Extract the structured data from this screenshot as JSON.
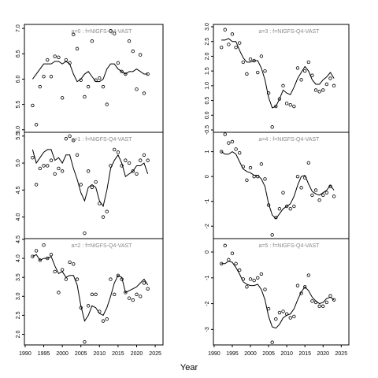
{
  "xlabel": "Year",
  "chart_data": [
    {
      "type": "scatter",
      "title": "a=0 : f=NIGFS-Q4-VAST",
      "x": [
        1992,
        1993,
        1994,
        1995,
        1996,
        1997,
        1998,
        1999,
        2000,
        2001,
        2002,
        2003,
        2004,
        2005,
        2006,
        2007,
        2008,
        2009,
        2010,
        2011,
        2012,
        2013,
        2014,
        2015,
        2016,
        2017,
        2018,
        2019,
        2020,
        2021,
        2022,
        2023
      ],
      "series": [
        {
          "style": "points",
          "color": "#000000",
          "values": [
            5.48,
            5.1,
            5.85,
            6.05,
            6.38,
            6.05,
            6.45,
            6.43,
            5.63,
            6.38,
            6.32,
            6.88,
            6.6,
            5.98,
            5.65,
            5.85,
            6.75,
            5.98,
            6.02,
            5.85,
            5.5,
            6.95,
            6.9,
            6.32,
            6.15,
            6.1,
            6.75,
            6.55,
            5.8,
            6.48,
            5.72,
            6.1
          ]
        },
        {
          "style": "line",
          "color": "#000000",
          "values": [
            6.0,
            6.1,
            6.2,
            6.3,
            6.3,
            6.3,
            6.35,
            6.35,
            6.3,
            6.35,
            6.3,
            6.1,
            5.95,
            6.0,
            6.1,
            6.15,
            6.05,
            5.95,
            5.95,
            6.0,
            6.2,
            6.3,
            6.3,
            6.2,
            6.15,
            6.1,
            6.15,
            6.15,
            6.2,
            6.15,
            6.1,
            6.1
          ]
        }
      ],
      "xlim": [
        1989.8,
        2027.1
      ],
      "ylim": [
        4.95,
        7.08
      ],
      "yticks": [
        {
          "value": 5,
          "label": "5.0"
        },
        5.5,
        {
          "value": 6,
          "label": "6.0"
        },
        6.5,
        {
          "value": 7,
          "label": "7.0"
        }
      ]
    },
    {
      "type": "scatter",
      "title": "a=1 : f=NIGFS-Q4-VAST",
      "x": [
        1992,
        1993,
        1994,
        1995,
        1996,
        1997,
        1998,
        1999,
        2000,
        2001,
        2002,
        2003,
        2004,
        2005,
        2006,
        2007,
        2008,
        2009,
        2010,
        2011,
        2012,
        2013,
        2014,
        2015,
        2016,
        2017,
        2018,
        2019,
        2020,
        2021,
        2022,
        2023
      ],
      "series": [
        {
          "style": "points",
          "color": "#000000",
          "values": [
            5.1,
            4.6,
            4.9,
            4.95,
            4.95,
            5.05,
            4.8,
            4.9,
            4.85,
            5.45,
            5.5,
            5.42,
            5.15,
            4.6,
            3.7,
            4.85,
            4.55,
            4.65,
            4.25,
            4.0,
            4.1,
            4.95,
            5.25,
            5.2,
            4.95,
            5.05,
            5.0,
            4.85,
            4.8,
            5.05,
            5.15,
            5.05
          ]
        },
        {
          "style": "line",
          "color": "#000000",
          "values": [
            5.25,
            5.0,
            5.1,
            5.2,
            5.25,
            5.25,
            5.05,
            5.1,
            5.0,
            5.15,
            5.15,
            4.9,
            4.7,
            4.45,
            4.3,
            4.55,
            4.6,
            4.55,
            4.3,
            4.2,
            4.5,
            4.9,
            5.05,
            5.15,
            5.0,
            4.75,
            4.8,
            4.85,
            4.95,
            4.95,
            5.0,
            4.8
          ]
        }
      ],
      "xlim": [
        1989.8,
        2027.1
      ],
      "ylim": [
        3.6,
        5.57
      ],
      "yticks": [
        {
          "value": 4,
          "label": "4.0"
        },
        4.5,
        {
          "value": 5,
          "label": "5.0"
        },
        5.5
      ]
    },
    {
      "type": "scatter",
      "title": "a=2 : f=NIGFS-Q4-VAST",
      "x": [
        1992,
        1993,
        1994,
        1995,
        1996,
        1997,
        1998,
        1999,
        2000,
        2001,
        2002,
        2003,
        2004,
        2005,
        2006,
        2007,
        2008,
        2009,
        2010,
        2011,
        2012,
        2013,
        2014,
        2015,
        2016,
        2017,
        2018,
        2019,
        2020,
        2021,
        2022,
        2023
      ],
      "series": [
        {
          "style": "points",
          "color": "#000000",
          "values": [
            4.05,
            4.2,
            3.95,
            4.35,
            4.0,
            4.1,
            3.65,
            3.1,
            3.7,
            3.45,
            3.9,
            3.85,
            3.45,
            2.7,
            1.8,
            2.75,
            3.05,
            3.05,
            2.6,
            2.35,
            2.4,
            3.45,
            3.05,
            3.55,
            3.45,
            3.1,
            2.95,
            2.9,
            3.05,
            3.0,
            3.35,
            3.2
          ]
        },
        {
          "style": "line",
          "color": "#000000",
          "values": [
            4.05,
            4.1,
            3.95,
            4.0,
            4.0,
            4.05,
            3.8,
            3.6,
            3.65,
            3.5,
            3.55,
            3.55,
            3.3,
            2.75,
            2.35,
            2.5,
            2.75,
            2.7,
            2.55,
            2.5,
            2.7,
            3.0,
            3.35,
            3.55,
            3.5,
            3.1,
            3.15,
            3.2,
            3.25,
            3.35,
            3.45,
            3.3
          ]
        }
      ],
      "xlim": [
        1989.8,
        2027.1
      ],
      "ylim": [
        1.72,
        4.52
      ],
      "yticks": [
        {
          "value": 2,
          "label": "2.0"
        },
        2.5,
        {
          "value": 3,
          "label": "3.0"
        },
        3.5,
        {
          "value": 4,
          "label": "4.0"
        },
        4.5
      ],
      "xticks": [
        1990,
        1995,
        2000,
        2005,
        2010,
        2015,
        2020,
        2025
      ]
    },
    {
      "type": "scatter",
      "title": "a=3 : f=NIGFS-Q4-VAST",
      "x": [
        1992,
        1993,
        1994,
        1995,
        1996,
        1997,
        1998,
        1999,
        2000,
        2001,
        2002,
        2003,
        2004,
        2005,
        2006,
        2007,
        2008,
        2009,
        2010,
        2011,
        2012,
        2013,
        2014,
        2015,
        2016,
        2017,
        2018,
        2019,
        2020,
        2021,
        2022,
        2023
      ],
      "series": [
        {
          "style": "points",
          "color": "#000000",
          "values": [
            2.3,
            2.9,
            2.4,
            2.75,
            2.3,
            2.45,
            1.8,
            1.4,
            1.9,
            1.85,
            1.45,
            2.0,
            1.5,
            0.75,
            -0.4,
            0.3,
            0.55,
            1.0,
            0.4,
            0.35,
            0.3,
            1.6,
            1.2,
            1.5,
            1.8,
            1.35,
            0.85,
            0.8,
            0.85,
            1.05,
            1.25,
            1.0
          ]
        },
        {
          "style": "line",
          "color": "#000000",
          "values": [
            2.55,
            2.55,
            2.6,
            2.5,
            2.5,
            2.2,
            1.95,
            1.8,
            1.8,
            1.85,
            1.85,
            1.6,
            1.2,
            0.6,
            0.25,
            0.3,
            0.55,
            0.85,
            0.75,
            0.7,
            0.95,
            1.25,
            1.45,
            1.65,
            1.5,
            1.2,
            1.05,
            1.05,
            1.2,
            1.3,
            1.45,
            1.25
          ]
        }
      ],
      "xlim": [
        1989.8,
        2027.1
      ],
      "ylim": [
        -0.58,
        3.08
      ],
      "yticks": [
        -0.5,
        {
          "value": 0,
          "label": "0.0"
        },
        0.5,
        {
          "value": 1,
          "label": "1.0"
        },
        1.5,
        {
          "value": 2,
          "label": "2.0"
        },
        2.5,
        {
          "value": 3,
          "label": "3.0"
        }
      ]
    },
    {
      "type": "scatter",
      "title": "a=4 : f=NIGFS-Q4-VAST",
      "x": [
        1992,
        1993,
        1994,
        1995,
        1996,
        1997,
        1998,
        1999,
        2000,
        2001,
        2002,
        2003,
        2004,
        2005,
        2006,
        2007,
        2008,
        2009,
        2010,
        2011,
        2012,
        2013,
        2014,
        2015,
        2016,
        2017,
        2018,
        2019,
        2020,
        2021,
        2022,
        2023
      ],
      "series": [
        {
          "style": "points",
          "color": "#000000",
          "values": [
            1.0,
            1.7,
            1.35,
            1.4,
            1.1,
            0.95,
            0.4,
            -0.15,
            0.35,
            0.0,
            0.0,
            0.5,
            -0.1,
            -1.15,
            -2.35,
            -1.65,
            -1.3,
            -0.65,
            -1.2,
            -1.3,
            -1.2,
            0.0,
            -0.45,
            -0.05,
            0.55,
            -0.75,
            -0.55,
            -0.95,
            -0.75,
            -0.65,
            -0.4,
            -0.8
          ]
        },
        {
          "style": "line",
          "color": "#000000",
          "values": [
            1.0,
            0.9,
            0.9,
            1.0,
            0.9,
            0.6,
            0.3,
            0.2,
            0.15,
            0.05,
            0.05,
            -0.1,
            -0.4,
            -1.1,
            -1.55,
            -1.7,
            -1.5,
            -1.3,
            -1.2,
            -1.1,
            -0.8,
            -0.35,
            0.0,
            0.05,
            -0.3,
            -0.6,
            -0.7,
            -0.75,
            -0.65,
            -0.55,
            -0.35,
            -0.55
          ]
        }
      ],
      "xlim": [
        1989.8,
        2027.1
      ],
      "ylim": [
        -2.5,
        1.78
      ],
      "yticks": [
        -2,
        -1,
        0,
        1
      ]
    },
    {
      "type": "scatter",
      "title": "a=5 : f=NIGFS-Q4-VAST",
      "x": [
        1992,
        1993,
        1994,
        1995,
        1996,
        1997,
        1998,
        1999,
        2000,
        2001,
        2002,
        2003,
        2004,
        2005,
        2006,
        2007,
        2008,
        2009,
        2010,
        2011,
        2012,
        2013,
        2014,
        2015,
        2016,
        2017,
        2018,
        2019,
        2020,
        2021,
        2022,
        2023
      ],
      "series": [
        {
          "style": "points",
          "color": "#000000",
          "values": [
            -0.45,
            0.25,
            -0.3,
            -0.05,
            -0.45,
            -0.7,
            -1.05,
            -1.35,
            -1.05,
            -1.1,
            -1.0,
            -0.85,
            -1.45,
            -2.2,
            -3.5,
            -2.6,
            -2.35,
            -2.3,
            -2.4,
            -2.55,
            -2.5,
            -1.3,
            -1.6,
            -1.35,
            -0.9,
            -1.9,
            -1.95,
            -2.1,
            -2.1,
            -1.95,
            -1.7,
            -1.85
          ]
        },
        {
          "style": "line",
          "color": "#000000",
          "values": [
            -0.45,
            -0.45,
            -0.35,
            -0.4,
            -0.6,
            -0.85,
            -1.15,
            -1.25,
            -1.3,
            -1.3,
            -1.25,
            -1.45,
            -1.85,
            -2.5,
            -2.9,
            -2.95,
            -2.8,
            -2.55,
            -2.45,
            -2.4,
            -2.2,
            -1.85,
            -1.55,
            -1.35,
            -1.5,
            -1.75,
            -1.9,
            -2.0,
            -1.95,
            -1.8,
            -1.75,
            -1.85
          ]
        }
      ],
      "xlim": [
        1989.8,
        2027.1
      ],
      "ylim": [
        -3.6,
        0.52
      ],
      "yticks": [
        -3,
        -2,
        -1,
        0
      ],
      "xticks": [
        1990,
        1995,
        2000,
        2005,
        2010,
        2015,
        2020,
        2025
      ]
    }
  ]
}
